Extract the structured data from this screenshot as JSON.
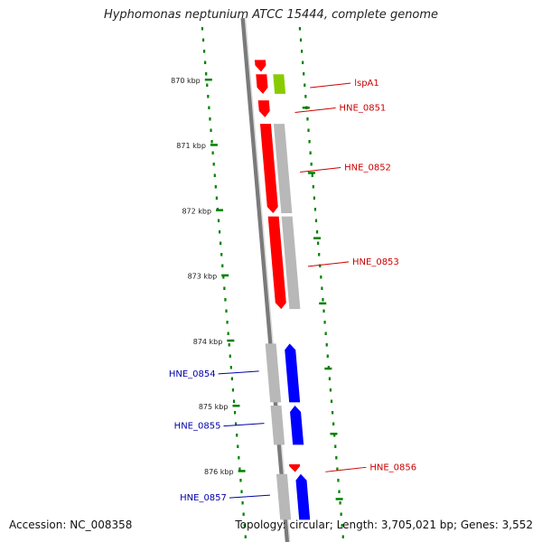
{
  "title": "Hyphomonas neptunium ATCC 15444, complete genome",
  "footer": {
    "accession": "Accession: NC_008358",
    "summary": "Topology: circular; Length: 3,705,021 bp; Genes: 3,552"
  },
  "colors": {
    "forward_cds": "#ff0000",
    "reverse_cds": "#0000ff",
    "gene_shadow": "#b8b8b8",
    "rna_gene": "#88cc00",
    "ruler_dots": "#008000",
    "backbone": "#7a7a7a",
    "forward_label": "#cc0000",
    "reverse_label": "#0000aa"
  },
  "ruler_ticks": [
    "870 kbp",
    "871 kbp",
    "872 kbp",
    "873 kbp",
    "874 kbp",
    "875 kbp",
    "876 kbp"
  ],
  "genes": [
    {
      "label": "",
      "strand": "forward",
      "start_kbp": 869.7,
      "end_kbp": 869.88,
      "type": "CDS"
    },
    {
      "label": "",
      "strand": "forward",
      "start_kbp": 869.92,
      "end_kbp": 870.22,
      "type": "CDS"
    },
    {
      "label": "lspA1",
      "strand": "forward",
      "start_kbp": 869.92,
      "end_kbp": 870.22,
      "type": "rna"
    },
    {
      "label": "HNE_0851",
      "strand": "forward",
      "start_kbp": 870.32,
      "end_kbp": 870.58,
      "type": "CDS"
    },
    {
      "label": "HNE_0852",
      "strand": "forward",
      "start_kbp": 870.68,
      "end_kbp": 872.05,
      "type": "CDS"
    },
    {
      "label": "HNE_0853",
      "strand": "forward",
      "start_kbp": 872.1,
      "end_kbp": 873.52,
      "type": "CDS"
    },
    {
      "label": "HNE_0854",
      "strand": "reverse",
      "start_kbp": 874.05,
      "end_kbp": 874.95,
      "type": "CDS"
    },
    {
      "label": "HNE_0855",
      "strand": "reverse",
      "start_kbp": 875.0,
      "end_kbp": 875.6,
      "type": "CDS"
    },
    {
      "label": "HNE_0856",
      "strand": "forward",
      "start_kbp": 875.9,
      "end_kbp": 876.02,
      "type": "CDS"
    },
    {
      "label": "HNE_0857",
      "strand": "reverse",
      "start_kbp": 876.05,
      "end_kbp": 876.75,
      "type": "CDS"
    }
  ]
}
